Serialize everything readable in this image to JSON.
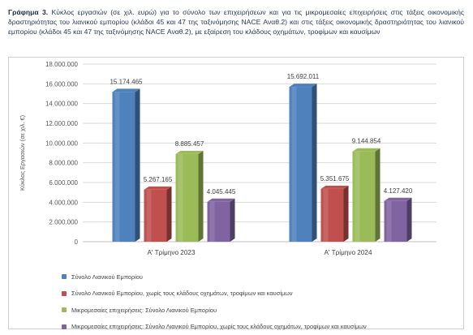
{
  "caption": {
    "label": "Γράφημα 3.",
    "text": "Κύκλος εργασιών (σε χιλ. ευρώ) για το σύνολο των επιχειρήσεων και για τις μικρομεσαίες επιχειρήσεις στις τάξεις οικονομικής δραστηριότητας του λιανικού εμπορίου (κλάδοι 45 και 47 της ταξινόμησης NACE Αναθ.2) και στις τάξεις οικονομικής δραστηριότητας του λιανικού εμπορίου (κλάδοι 45 και 47 της ταξινόμησης NACE Αναθ.2), με εξαίρεση του κλάδους οχημάτων, τροφίμων και καυσίμων"
  },
  "chart_data": {
    "type": "bar",
    "categories": [
      "Α' Τρίμηνο 2023",
      "Α' Τρίμηνο 2024"
    ],
    "series": [
      {
        "name": "Σύνολο Λιανικού Εμπορίου",
        "values": [
          15174465,
          15692011
        ],
        "labels": [
          "15.174.465",
          "15.692.011"
        ],
        "color": "#4f81bd"
      },
      {
        "name": "Σύνολο Λιανικού Εμπορίου, χωρίς τους κλάδους οχημάτων, τροφίμων και καυσίμων",
        "values": [
          5267165,
          5351675
        ],
        "labels": [
          "5.267.165",
          "5.351.675"
        ],
        "color": "#c0504d"
      },
      {
        "name": "Μικρομεσαίες επιχειρήσεις: Σύνολο Λιανικού Εμπορίου",
        "values": [
          8885457,
          9144854
        ],
        "labels": [
          "8.885.457",
          "9.144.854"
        ],
        "color": "#9bbb59"
      },
      {
        "name": "Μικρομεσαίες επιχειρήσεις: Σύνολο Λιανικού Εμπορίου, χωρίς τους κλάδους οχημάτων, τροφίμων και καυσίμων",
        "values": [
          4045445,
          4127420
        ],
        "labels": [
          "4.045.445",
          "4.127.420"
        ],
        "color": "#8064a2"
      }
    ],
    "ylabel": "Κύκλος Εργασιών (σε χιλ. €)",
    "ylim": [
      0,
      18000000
    ],
    "yticks": [
      0,
      2000000,
      4000000,
      6000000,
      8000000,
      10000000,
      12000000,
      14000000,
      16000000,
      18000000
    ],
    "ytick_labels": [
      "0",
      "2.000.000",
      "4.000.000",
      "6.000.000",
      "8.000.000",
      "10.000.000",
      "12.000.000",
      "14.000.000",
      "16.000.000",
      "18.000.000"
    ],
    "grid": true,
    "legend_position": "bottom"
  }
}
